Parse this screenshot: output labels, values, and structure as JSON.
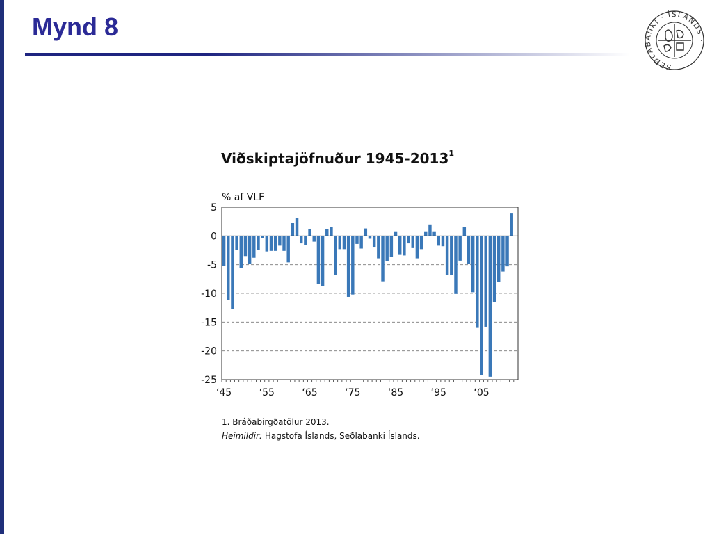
{
  "slide": {
    "title": "Mynd 8"
  },
  "logo": {
    "ring_text": "SEÐLABANKI · ÍSLANDS ·",
    "color": "#333333"
  },
  "colors": {
    "bar": "#3a78b8",
    "title": "#2b2a96",
    "rule": "#1e2480"
  },
  "chart_data": {
    "type": "bar",
    "title": "Viðskiptajöfnuður 1945-2013",
    "title_footnote": "1",
    "ylabel": "% af VLF",
    "xlabel": "",
    "ylim": [
      -25,
      5
    ],
    "yticks": [
      5,
      0,
      -5,
      -10,
      -15,
      -20,
      -25
    ],
    "xtick_labels": [
      "‘45",
      "‘55",
      "‘65",
      "‘75",
      "‘85",
      "‘95",
      "‘05"
    ],
    "xtick_years": [
      1945,
      1955,
      1965,
      1975,
      1985,
      1995,
      2005
    ],
    "grid": "dashed horizontal at -5, -10, -15, -20",
    "categories": [
      1945,
      1946,
      1947,
      1948,
      1949,
      1950,
      1951,
      1952,
      1953,
      1954,
      1955,
      1956,
      1957,
      1958,
      1959,
      1960,
      1961,
      1962,
      1963,
      1964,
      1965,
      1966,
      1967,
      1968,
      1969,
      1970,
      1971,
      1972,
      1973,
      1974,
      1975,
      1976,
      1977,
      1978,
      1979,
      1980,
      1981,
      1982,
      1983,
      1984,
      1985,
      1986,
      1987,
      1988,
      1989,
      1990,
      1991,
      1992,
      1993,
      1994,
      1995,
      1996,
      1997,
      1998,
      1999,
      2000,
      2001,
      2002,
      2003,
      2004,
      2005,
      2006,
      2007,
      2008,
      2009,
      2010,
      2011,
      2012,
      2013
    ],
    "values": [
      -5.2,
      -11.2,
      -12.7,
      -2.5,
      -5.6,
      -3.5,
      -4.9,
      -3.8,
      -2.5,
      -0.4,
      -2.7,
      -2.6,
      -2.6,
      -1.7,
      -2.6,
      -4.6,
      2.3,
      3.1,
      -1.3,
      -1.6,
      1.2,
      -1.0,
      -8.4,
      -8.7,
      1.2,
      1.5,
      -6.8,
      -2.3,
      -2.3,
      -10.6,
      -10.2,
      -1.4,
      -2.2,
      1.3,
      -0.5,
      -1.9,
      -3.9,
      -7.9,
      -4.4,
      -3.7,
      0.8,
      -3.3,
      -3.4,
      -1.3,
      -2.0,
      -3.9,
      -2.3,
      0.8,
      2.0,
      0.8,
      -1.7,
      -1.8,
      -6.8,
      -6.8,
      -10.1,
      -4.3,
      1.5,
      -4.8,
      -9.8,
      -16.0,
      -24.2,
      -15.8,
      -24.5,
      -11.5,
      -8.0,
      -6.2,
      -5.3,
      3.9,
      0
    ]
  },
  "notes": {
    "footnote": "1. Bráðabirgðatölur 2013.",
    "source_label": "Heimildir:",
    "source_text": " Hagstofa Íslands, Seðlabanki Íslands."
  }
}
